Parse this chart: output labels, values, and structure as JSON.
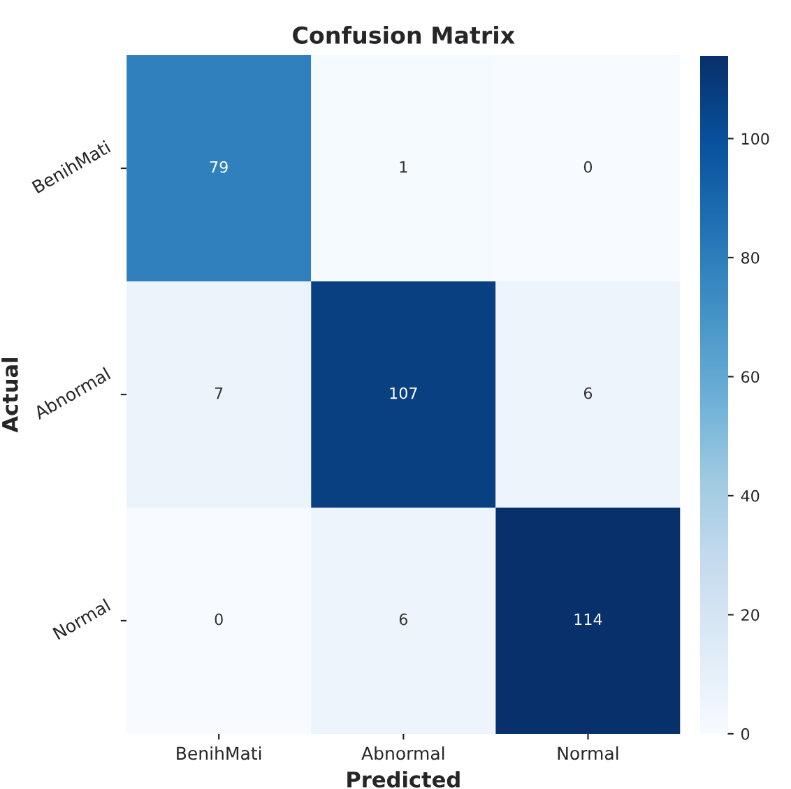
{
  "chart_data": {
    "type": "heatmap",
    "title": "Confusion Matrix",
    "xlabel": "Predicted",
    "ylabel": "Actual",
    "categories": [
      "BenihMati",
      "Abnormal",
      "Normal"
    ],
    "y_categories": [
      "BenihMati",
      "Abnormal",
      "Normal"
    ],
    "cells": [
      [
        79,
        1,
        0
      ],
      [
        7,
        107,
        6
      ],
      [
        0,
        6,
        114
      ]
    ],
    "clim": [
      0,
      114
    ],
    "cticks": [
      0,
      20,
      40,
      60,
      80,
      100
    ],
    "data_labels": true
  }
}
